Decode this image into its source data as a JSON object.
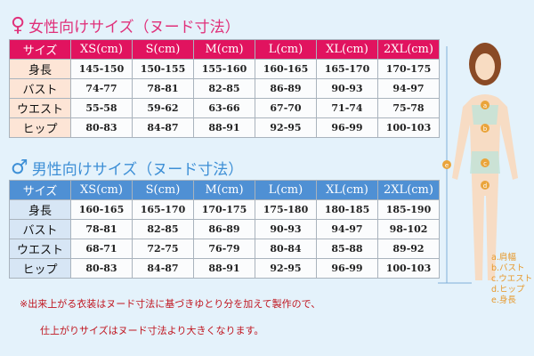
{
  "women": {
    "title": "女性向けサイズ（ヌード寸法）",
    "symbol": "♀",
    "color": "#e1135f",
    "headers": [
      "サイズ",
      "XS(cm)",
      "S(cm)",
      "M(cm)",
      "L(cm)",
      "XL(cm)",
      "2XL(cm)"
    ],
    "rows": [
      [
        "身長",
        "145-150",
        "150-155",
        "155-160",
        "160-165",
        "165-170",
        "170-175"
      ],
      [
        "バスト",
        "74-77",
        "78-81",
        "82-85",
        "86-89",
        "90-93",
        "94-97"
      ],
      [
        "ウエスト",
        "55-58",
        "59-62",
        "63-66",
        "67-70",
        "71-74",
        "75-78"
      ],
      [
        "ヒップ",
        "80-83",
        "84-87",
        "88-91",
        "92-95",
        "96-99",
        "100-103"
      ]
    ]
  },
  "men": {
    "title": "男性向けサイズ（ヌード寸法）",
    "symbol": "♂",
    "color": "#4f90d4",
    "headers": [
      "サイズ",
      "XS(cm)",
      "S(cm)",
      "M(cm)",
      "L(cm)",
      "XL(cm)",
      "2XL(cm)"
    ],
    "rows": [
      [
        "身長",
        "160-165",
        "165-170",
        "170-175",
        "175-180",
        "180-185",
        "185-190"
      ],
      [
        "バスト",
        "78-81",
        "82-85",
        "86-89",
        "90-93",
        "94-97",
        "98-102"
      ],
      [
        "ウエスト",
        "68-71",
        "72-75",
        "76-79",
        "80-84",
        "85-88",
        "89-92"
      ],
      [
        "ヒップ",
        "80-83",
        "84-87",
        "88-91",
        "92-95",
        "96-99",
        "100-103"
      ]
    ]
  },
  "notes": [
    "※出来上がる衣装はヌード寸法に基づきゆとり分を加えて製作ので、",
    "仕上がりサイズはヌード寸法より大きくなります。"
  ],
  "legend": [
    "a.肩幅",
    "b.バスト",
    "c.ウエスト",
    "d.ヒップ",
    "e.身長"
  ],
  "markers": [
    "a",
    "b",
    "c",
    "d",
    "e"
  ]
}
